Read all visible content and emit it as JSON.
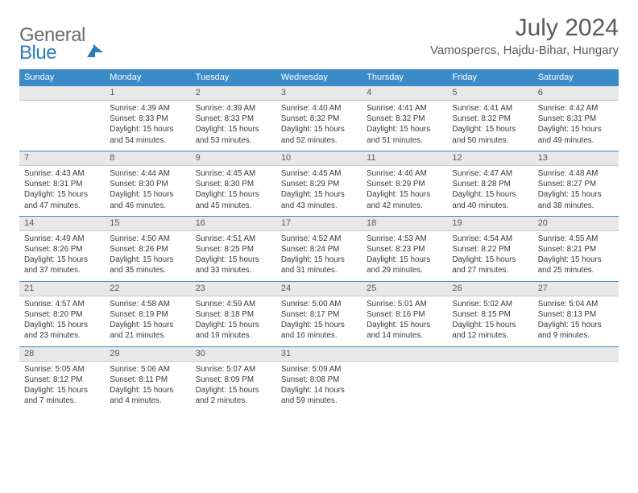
{
  "logo": {
    "word1": "General",
    "word2": "Blue"
  },
  "title": "July 2024",
  "location": "Vamospercs, Hajdu-Bihar, Hungary",
  "colors": {
    "header_bg": "#3b8bc8",
    "header_text": "#ffffff",
    "daynum_bg": "#e8e8e8",
    "border": "#3b8bc8",
    "text": "#3a3a3a",
    "title_text": "#5a5a5a"
  },
  "day_names": [
    "Sunday",
    "Monday",
    "Tuesday",
    "Wednesday",
    "Thursday",
    "Friday",
    "Saturday"
  ],
  "weeks": [
    {
      "nums": [
        "",
        "1",
        "2",
        "3",
        "4",
        "5",
        "6"
      ],
      "cells": [
        {
          "sunrise": "",
          "sunset": "",
          "daylight": ""
        },
        {
          "sunrise": "Sunrise: 4:39 AM",
          "sunset": "Sunset: 8:33 PM",
          "daylight": "Daylight: 15 hours and 54 minutes."
        },
        {
          "sunrise": "Sunrise: 4:39 AM",
          "sunset": "Sunset: 8:33 PM",
          "daylight": "Daylight: 15 hours and 53 minutes."
        },
        {
          "sunrise": "Sunrise: 4:40 AM",
          "sunset": "Sunset: 8:32 PM",
          "daylight": "Daylight: 15 hours and 52 minutes."
        },
        {
          "sunrise": "Sunrise: 4:41 AM",
          "sunset": "Sunset: 8:32 PM",
          "daylight": "Daylight: 15 hours and 51 minutes."
        },
        {
          "sunrise": "Sunrise: 4:41 AM",
          "sunset": "Sunset: 8:32 PM",
          "daylight": "Daylight: 15 hours and 50 minutes."
        },
        {
          "sunrise": "Sunrise: 4:42 AM",
          "sunset": "Sunset: 8:31 PM",
          "daylight": "Daylight: 15 hours and 49 minutes."
        }
      ]
    },
    {
      "nums": [
        "7",
        "8",
        "9",
        "10",
        "11",
        "12",
        "13"
      ],
      "cells": [
        {
          "sunrise": "Sunrise: 4:43 AM",
          "sunset": "Sunset: 8:31 PM",
          "daylight": "Daylight: 15 hours and 47 minutes."
        },
        {
          "sunrise": "Sunrise: 4:44 AM",
          "sunset": "Sunset: 8:30 PM",
          "daylight": "Daylight: 15 hours and 46 minutes."
        },
        {
          "sunrise": "Sunrise: 4:45 AM",
          "sunset": "Sunset: 8:30 PM",
          "daylight": "Daylight: 15 hours and 45 minutes."
        },
        {
          "sunrise": "Sunrise: 4:45 AM",
          "sunset": "Sunset: 8:29 PM",
          "daylight": "Daylight: 15 hours and 43 minutes."
        },
        {
          "sunrise": "Sunrise: 4:46 AM",
          "sunset": "Sunset: 8:29 PM",
          "daylight": "Daylight: 15 hours and 42 minutes."
        },
        {
          "sunrise": "Sunrise: 4:47 AM",
          "sunset": "Sunset: 8:28 PM",
          "daylight": "Daylight: 15 hours and 40 minutes."
        },
        {
          "sunrise": "Sunrise: 4:48 AM",
          "sunset": "Sunset: 8:27 PM",
          "daylight": "Daylight: 15 hours and 38 minutes."
        }
      ]
    },
    {
      "nums": [
        "14",
        "15",
        "16",
        "17",
        "18",
        "19",
        "20"
      ],
      "cells": [
        {
          "sunrise": "Sunrise: 4:49 AM",
          "sunset": "Sunset: 8:26 PM",
          "daylight": "Daylight: 15 hours and 37 minutes."
        },
        {
          "sunrise": "Sunrise: 4:50 AM",
          "sunset": "Sunset: 8:26 PM",
          "daylight": "Daylight: 15 hours and 35 minutes."
        },
        {
          "sunrise": "Sunrise: 4:51 AM",
          "sunset": "Sunset: 8:25 PM",
          "daylight": "Daylight: 15 hours and 33 minutes."
        },
        {
          "sunrise": "Sunrise: 4:52 AM",
          "sunset": "Sunset: 8:24 PM",
          "daylight": "Daylight: 15 hours and 31 minutes."
        },
        {
          "sunrise": "Sunrise: 4:53 AM",
          "sunset": "Sunset: 8:23 PM",
          "daylight": "Daylight: 15 hours and 29 minutes."
        },
        {
          "sunrise": "Sunrise: 4:54 AM",
          "sunset": "Sunset: 8:22 PM",
          "daylight": "Daylight: 15 hours and 27 minutes."
        },
        {
          "sunrise": "Sunrise: 4:55 AM",
          "sunset": "Sunset: 8:21 PM",
          "daylight": "Daylight: 15 hours and 25 minutes."
        }
      ]
    },
    {
      "nums": [
        "21",
        "22",
        "23",
        "24",
        "25",
        "26",
        "27"
      ],
      "cells": [
        {
          "sunrise": "Sunrise: 4:57 AM",
          "sunset": "Sunset: 8:20 PM",
          "daylight": "Daylight: 15 hours and 23 minutes."
        },
        {
          "sunrise": "Sunrise: 4:58 AM",
          "sunset": "Sunset: 8:19 PM",
          "daylight": "Daylight: 15 hours and 21 minutes."
        },
        {
          "sunrise": "Sunrise: 4:59 AM",
          "sunset": "Sunset: 8:18 PM",
          "daylight": "Daylight: 15 hours and 19 minutes."
        },
        {
          "sunrise": "Sunrise: 5:00 AM",
          "sunset": "Sunset: 8:17 PM",
          "daylight": "Daylight: 15 hours and 16 minutes."
        },
        {
          "sunrise": "Sunrise: 5:01 AM",
          "sunset": "Sunset: 8:16 PM",
          "daylight": "Daylight: 15 hours and 14 minutes."
        },
        {
          "sunrise": "Sunrise: 5:02 AM",
          "sunset": "Sunset: 8:15 PM",
          "daylight": "Daylight: 15 hours and 12 minutes."
        },
        {
          "sunrise": "Sunrise: 5:04 AM",
          "sunset": "Sunset: 8:13 PM",
          "daylight": "Daylight: 15 hours and 9 minutes."
        }
      ]
    },
    {
      "nums": [
        "28",
        "29",
        "30",
        "31",
        "",
        "",
        ""
      ],
      "cells": [
        {
          "sunrise": "Sunrise: 5:05 AM",
          "sunset": "Sunset: 8:12 PM",
          "daylight": "Daylight: 15 hours and 7 minutes."
        },
        {
          "sunrise": "Sunrise: 5:06 AM",
          "sunset": "Sunset: 8:11 PM",
          "daylight": "Daylight: 15 hours and 4 minutes."
        },
        {
          "sunrise": "Sunrise: 5:07 AM",
          "sunset": "Sunset: 8:09 PM",
          "daylight": "Daylight: 15 hours and 2 minutes."
        },
        {
          "sunrise": "Sunrise: 5:09 AM",
          "sunset": "Sunset: 8:08 PM",
          "daylight": "Daylight: 14 hours and 59 minutes."
        },
        {
          "sunrise": "",
          "sunset": "",
          "daylight": ""
        },
        {
          "sunrise": "",
          "sunset": "",
          "daylight": ""
        },
        {
          "sunrise": "",
          "sunset": "",
          "daylight": ""
        }
      ]
    }
  ]
}
